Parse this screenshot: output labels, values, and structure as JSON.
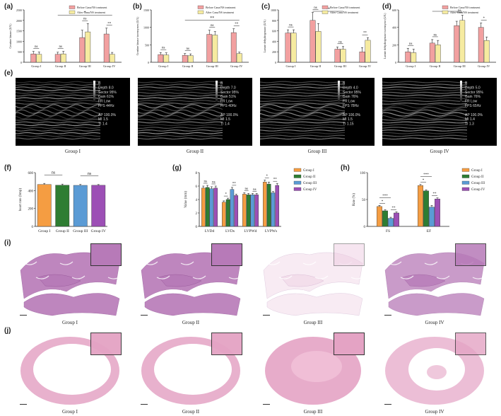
{
  "panel_labels": [
    "(a)",
    "(b)",
    "(c)",
    "(d)",
    "(e)",
    "(f)",
    "(g)",
    "(h)",
    "(i)",
    "(j)"
  ],
  "colors": {
    "before": "#f2a0a0",
    "after": "#f6eba0",
    "group_i": "#f59d42",
    "group_ii": "#2e7d32",
    "group_iii": "#5b9bd5",
    "group_iv": "#9c4fb5",
    "he_stain": "#b77ab8",
    "he_stain_pink": "#e4a3c4"
  },
  "chart_data": [
    {
      "id": "a",
      "type": "bar",
      "categories": [
        "Group I",
        "Group II",
        "Group III",
        "Group IV"
      ],
      "series": [
        {
          "name": "Before Cana/NS treatment",
          "values": [
            400,
            380,
            1180,
            1350
          ],
          "errors": [
            120,
            100,
            350,
            280
          ]
        },
        {
          "name": "After Cana/NS treatment",
          "values": [
            380,
            400,
            1450,
            380
          ],
          "errors": [
            110,
            120,
            400,
            90
          ]
        }
      ],
      "ylabel": "Creatine kinase (U/L)",
      "ylim": [
        0,
        2500
      ],
      "yticks": [
        0,
        500,
        1000,
        1500,
        2000,
        2500
      ],
      "annotations": [
        {
          "text": "ns",
          "g": 0
        },
        {
          "text": "ns",
          "g": 1
        },
        {
          "text": "ns",
          "g": 2
        },
        {
          "text": "**",
          "g": 3
        },
        {
          "text": "*",
          "from": 1,
          "to": 3
        }
      ]
    },
    {
      "id": "b",
      "type": "bar",
      "categories": [
        "Group I",
        "Group II",
        "Group III",
        "Group IV"
      ],
      "series": [
        {
          "name": "Before Cana/NS treatment",
          "values": [
            220,
            200,
            800,
            850
          ],
          "errors": [
            60,
            50,
            120,
            110
          ]
        },
        {
          "name": "After Cana/NS treatment",
          "values": [
            210,
            190,
            780,
            250
          ],
          "errors": [
            60,
            50,
            100,
            40
          ]
        }
      ],
      "ylabel": "Creatine kinase isoenzymes (U/L)",
      "ylim": [
        0,
        1500
      ],
      "yticks": [
        0,
        500,
        1000,
        1500
      ],
      "annotations": [
        {
          "text": "ns",
          "g": 0
        },
        {
          "text": "ns",
          "g": 1
        },
        {
          "text": "ns",
          "g": 2
        },
        {
          "text": "**",
          "g": 3
        },
        {
          "text": "**",
          "from": 1,
          "to": 3
        }
      ]
    },
    {
      "id": "c",
      "type": "bar",
      "categories": [
        "Group I",
        "Group II",
        "Group III",
        "Group IV"
      ],
      "series": [
        {
          "name": "Before Cana/NS treatment",
          "values": [
            560,
            800,
            250,
            200
          ],
          "errors": [
            60,
            150,
            40,
            80
          ]
        },
        {
          "name": "After Cana/NS treatment",
          "values": [
            560,
            590,
            250,
            420
          ],
          "errors": [
            60,
            150,
            50,
            50
          ]
        }
      ],
      "ylabel": "Lactate dehydrogenase (U/L)",
      "ylim": [
        0,
        1000
      ],
      "yticks": [
        0,
        200,
        400,
        600,
        800,
        1000
      ],
      "annotations": [
        {
          "text": "ns",
          "g": 0
        },
        {
          "text": "ns",
          "g": 1
        },
        {
          "text": "ns",
          "g": 2
        },
        {
          "text": "**",
          "g": 3
        },
        {
          "text": "**",
          "from": 1,
          "to": 2
        }
      ]
    },
    {
      "id": "d",
      "type": "bar",
      "categories": [
        "Group I",
        "Group II",
        "Group III",
        "Group IV"
      ],
      "series": [
        {
          "name": "Before Cana/NS treatment",
          "values": [
            120,
            220,
            420,
            400
          ],
          "errors": [
            40,
            40,
            50,
            50
          ]
        },
        {
          "name": "After Cana/NS treatment",
          "values": [
            110,
            200,
            480,
            250
          ],
          "errors": [
            40,
            50,
            60,
            40
          ]
        }
      ],
      "ylabel": "Lactate dehydrogenase isoenzyme (U/L)",
      "ylim": [
        0,
        600
      ],
      "yticks": [
        0,
        200,
        400,
        600
      ],
      "annotations": [
        {
          "text": "ns",
          "g": 0
        },
        {
          "text": "ns",
          "g": 1
        },
        {
          "text": "ns",
          "g": 2
        },
        {
          "text": "*",
          "g": 3
        },
        {
          "text": "*",
          "from": 1,
          "to": 2
        }
      ]
    },
    {
      "id": "f",
      "type": "bar",
      "categories": [
        "Group I",
        "Group II",
        "Group III",
        "Group IV"
      ],
      "values": [
        468,
        460,
        458,
        459
      ],
      "errors": [
        12,
        12,
        10,
        8
      ],
      "ylabel": "heart rate (bmp)",
      "ylim": [
        0,
        600
      ],
      "yticks": [
        0,
        200,
        400,
        600
      ],
      "annotations": [
        {
          "text": "ns",
          "from": 0,
          "to": 1
        },
        {
          "text": "ns",
          "from": 2,
          "to": 3
        }
      ]
    },
    {
      "id": "g",
      "type": "bar",
      "categories": [
        "LVDd",
        "LVDs",
        "LVPWd",
        "LVPWs"
      ],
      "series": [
        {
          "name": "Group I",
          "values": [
            5.7,
            3.6,
            4.8,
            6.6
          ],
          "errors": [
            0.3,
            0.2,
            0.2,
            0.3
          ]
        },
        {
          "name": "Group II",
          "values": [
            5.8,
            4.0,
            4.7,
            6.3
          ],
          "errors": [
            0.3,
            0.2,
            0.2,
            0.3
          ]
        },
        {
          "name": "Group III",
          "values": [
            5.6,
            5.5,
            4.7,
            5.0
          ],
          "errors": [
            0.3,
            0.3,
            0.2,
            0.2
          ]
        },
        {
          "name": "Group IV",
          "values": [
            5.7,
            4.6,
            4.7,
            6.1
          ],
          "errors": [
            0.3,
            0.2,
            0.2,
            0.3
          ]
        }
      ],
      "ylabel": "Value (mm)",
      "ylim": [
        0,
        8
      ],
      "yticks": [
        0,
        2,
        4,
        6,
        8
      ],
      "annotations": [
        {
          "text": "ns",
          "c": 0,
          "a": 0,
          "b": 1
        },
        {
          "text": "ns",
          "c": 0,
          "a": 2,
          "b": 3
        },
        {
          "text": "*",
          "c": 1,
          "a": 0,
          "b": 1
        },
        {
          "text": "**",
          "c": 1,
          "a": 2,
          "b": 3
        },
        {
          "text": "ns",
          "c": 2,
          "a": 0,
          "b": 1
        },
        {
          "text": "ns",
          "c": 2,
          "a": 2,
          "b": 3
        },
        {
          "text": "*",
          "c": 3,
          "a": 0,
          "b": 1
        },
        {
          "text": "**",
          "c": 3,
          "a": 2,
          "b": 3
        }
      ]
    },
    {
      "id": "h",
      "type": "bar",
      "categories": [
        "FS",
        "EF"
      ],
      "series": [
        {
          "name": "Group I",
          "values": [
            37,
            76
          ],
          "errors": [
            2,
            2
          ]
        },
        {
          "name": "Group II",
          "values": [
            29,
            66
          ],
          "errors": [
            2,
            2
          ]
        },
        {
          "name": "Group III",
          "values": [
            15,
            36
          ],
          "errors": [
            2,
            3
          ]
        },
        {
          "name": "Group IV",
          "values": [
            25,
            51
          ],
          "errors": [
            2,
            2
          ]
        }
      ],
      "ylabel": "Rate (%)",
      "ylim": [
        0,
        100
      ],
      "yticks": [
        0,
        50,
        100
      ],
      "annotations": [
        {
          "text": "*",
          "c": 0,
          "a": 0,
          "b": 1
        },
        {
          "text": "***",
          "c": 0,
          "a": 0,
          "b": 2
        },
        {
          "text": "**",
          "c": 0,
          "a": 2,
          "b": 3
        },
        {
          "text": "*",
          "c": 1,
          "a": 0,
          "b": 1
        },
        {
          "text": "***",
          "c": 1,
          "a": 0,
          "b": 2
        },
        {
          "text": "**",
          "c": 1,
          "a": 2,
          "b": 3
        }
      ]
    }
  ],
  "echo_panels": [
    {
      "caption": "Group I",
      "info": [
        "B",
        "Depth 8.0",
        "Sector 95%",
        "Gain 61%",
        "FR Low",
        "FPS 44Hz",
        "",
        "AP 100.0%",
        "MI 1.5",
        "TI 1.4"
      ]
    },
    {
      "caption": "Group II",
      "info": [
        "B",
        "Depth 7.0",
        "Sector 95%",
        "Gain 51%",
        "FR Low",
        "FPS 40Hz",
        "",
        "AP 100.0%",
        "MI 1.5",
        "TI 1.4"
      ]
    },
    {
      "caption": "Group III",
      "info": [
        "B",
        "Depth 4.0",
        "Sector 95%",
        "Gain 76%",
        "FR Low",
        "FPS 78Hz",
        "",
        "AP 100.0%",
        "MI 1.5",
        "TI 1.15"
      ]
    },
    {
      "caption": "Group IV",
      "info": [
        "B",
        "Depth 5.0",
        "Sector 95%",
        "Gain 76%",
        "FR Low",
        "FPS 65Hz",
        "",
        "AP 100.0%",
        "MI 1.4",
        "TI 1.3"
      ]
    }
  ],
  "histology_rows": [
    {
      "row": "i",
      "captions": [
        "Group I",
        "Group II",
        "Group III",
        "Group IV"
      ]
    },
    {
      "row": "j",
      "captions": [
        "Group I",
        "Group II",
        "Group III",
        "Group IV"
      ]
    }
  ]
}
